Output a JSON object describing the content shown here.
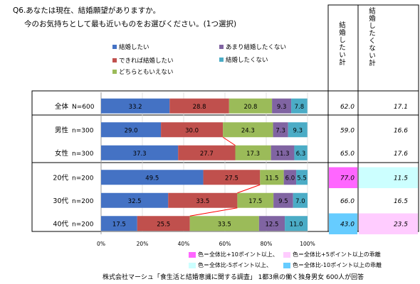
{
  "title_line1": "Q6.あなたは現在、結婚願望がありますか。",
  "title_line2": "今のお気持ちとして最も近いものをお選びください。(1つ選択)",
  "colors": {
    "want": "#4472c4",
    "if_possible": "#c0504d",
    "neither": "#9bbb59",
    "not_really": "#8064a2",
    "not_want": "#4bacc6",
    "hl_plus10": "#ff66ff",
    "hl_plus5": "#ffccff",
    "hl_minus5": "#ccffff",
    "hl_minus10": "#66ccff"
  },
  "legend": [
    {
      "key": "want",
      "label": "結婚したい"
    },
    {
      "key": "if_possible",
      "label": "できれば結婚したい"
    },
    {
      "key": "neither",
      "label": "どちらともいえない"
    },
    {
      "key": "not_really",
      "label": "あまり結婚したくない"
    },
    {
      "key": "not_want",
      "label": "結婚したくない"
    }
  ],
  "side_headers": {
    "want_total": "結婚したい計",
    "not_want_total": "結婚したくない計"
  },
  "chart_data": {
    "type": "bar",
    "orientation": "horizontal-stacked-100",
    "categories": [
      "全体 N=600",
      "男性 n=300",
      "女性 n=300",
      "20代 n=200",
      "30代 n=200",
      "40代 n=200"
    ],
    "category_labels": [
      {
        "group": "全体",
        "n": "N=600"
      },
      {
        "group": "男性",
        "n": "n=300"
      },
      {
        "group": "女性",
        "n": "n=300"
      },
      {
        "group": "20代",
        "n": "n=200"
      },
      {
        "group": "30代",
        "n": "n=200"
      },
      {
        "group": "40代",
        "n": "n=200"
      }
    ],
    "series": [
      {
        "name": "結婚したい",
        "key": "want",
        "values": [
          33.2,
          29.0,
          37.3,
          49.5,
          32.5,
          17.5
        ]
      },
      {
        "name": "できれば結婚したい",
        "key": "if_possible",
        "values": [
          28.8,
          30.0,
          27.7,
          27.5,
          33.5,
          25.5
        ]
      },
      {
        "name": "どちらともいえない",
        "key": "neither",
        "values": [
          20.8,
          24.3,
          17.3,
          11.5,
          17.5,
          33.5
        ]
      },
      {
        "name": "あまり結婚したくない",
        "key": "not_really",
        "values": [
          9.3,
          7.3,
          11.3,
          6.0,
          9.5,
          12.5
        ]
      },
      {
        "name": "結婚したくない",
        "key": "not_want",
        "values": [
          7.8,
          9.3,
          6.3,
          5.5,
          7.0,
          11.0
        ]
      }
    ],
    "value_labels": [
      [
        "33.2",
        "28.8",
        "20.8",
        "9.3",
        "7.8"
      ],
      [
        "29.0",
        "30.0",
        "24.3",
        "7.3",
        "9.3"
      ],
      [
        "37.3",
        "27.7",
        "17.3",
        "11.3",
        "6.3"
      ],
      [
        "49.5",
        "27.5",
        "11.5",
        "6.0",
        "5.5"
      ],
      [
        "32.5",
        "33.5",
        "17.5",
        "9.5",
        "7.0"
      ],
      [
        "17.5",
        "25.5",
        "33.5",
        "12.5",
        "11.0"
      ]
    ],
    "xlim": [
      0,
      100
    ],
    "xticks": [
      "0%",
      "20%",
      "40%",
      "60%",
      "80%",
      "100%"
    ],
    "totals": [
      {
        "want": "62.0",
        "not_want": "17.1",
        "want_hl": "",
        "not_want_hl": ""
      },
      {
        "want": "59.0",
        "not_want": "16.6",
        "want_hl": "",
        "not_want_hl": ""
      },
      {
        "want": "65.0",
        "not_want": "17.6",
        "want_hl": "",
        "not_want_hl": ""
      },
      {
        "want": "77.0",
        "not_want": "11.5",
        "want_hl": "hl_plus10",
        "not_want_hl": "hl_minus5"
      },
      {
        "want": "66.0",
        "not_want": "16.5",
        "want_hl": "",
        "not_want_hl": ""
      },
      {
        "want": "43.0",
        "not_want": "23.5",
        "want_hl": "hl_minus10",
        "not_want_hl": "hl_plus5"
      }
    ]
  },
  "notes": [
    {
      "key": "hl_plus10",
      "label": "色＝全体比+10ポイント以上、"
    },
    {
      "key": "hl_plus5",
      "label": "色＝全体比+5ポイント以上の乖離"
    },
    {
      "key": "hl_minus5",
      "label": "色＝全体比-5ポイント以上、"
    },
    {
      "key": "hl_minus10",
      "label": "色＝全体比-10ポイント以上の乖離"
    }
  ],
  "footer": "株式会社マーシュ「食生活と結婚意識に関する調査」 1都3県の働く独身男女 600人が回答"
}
